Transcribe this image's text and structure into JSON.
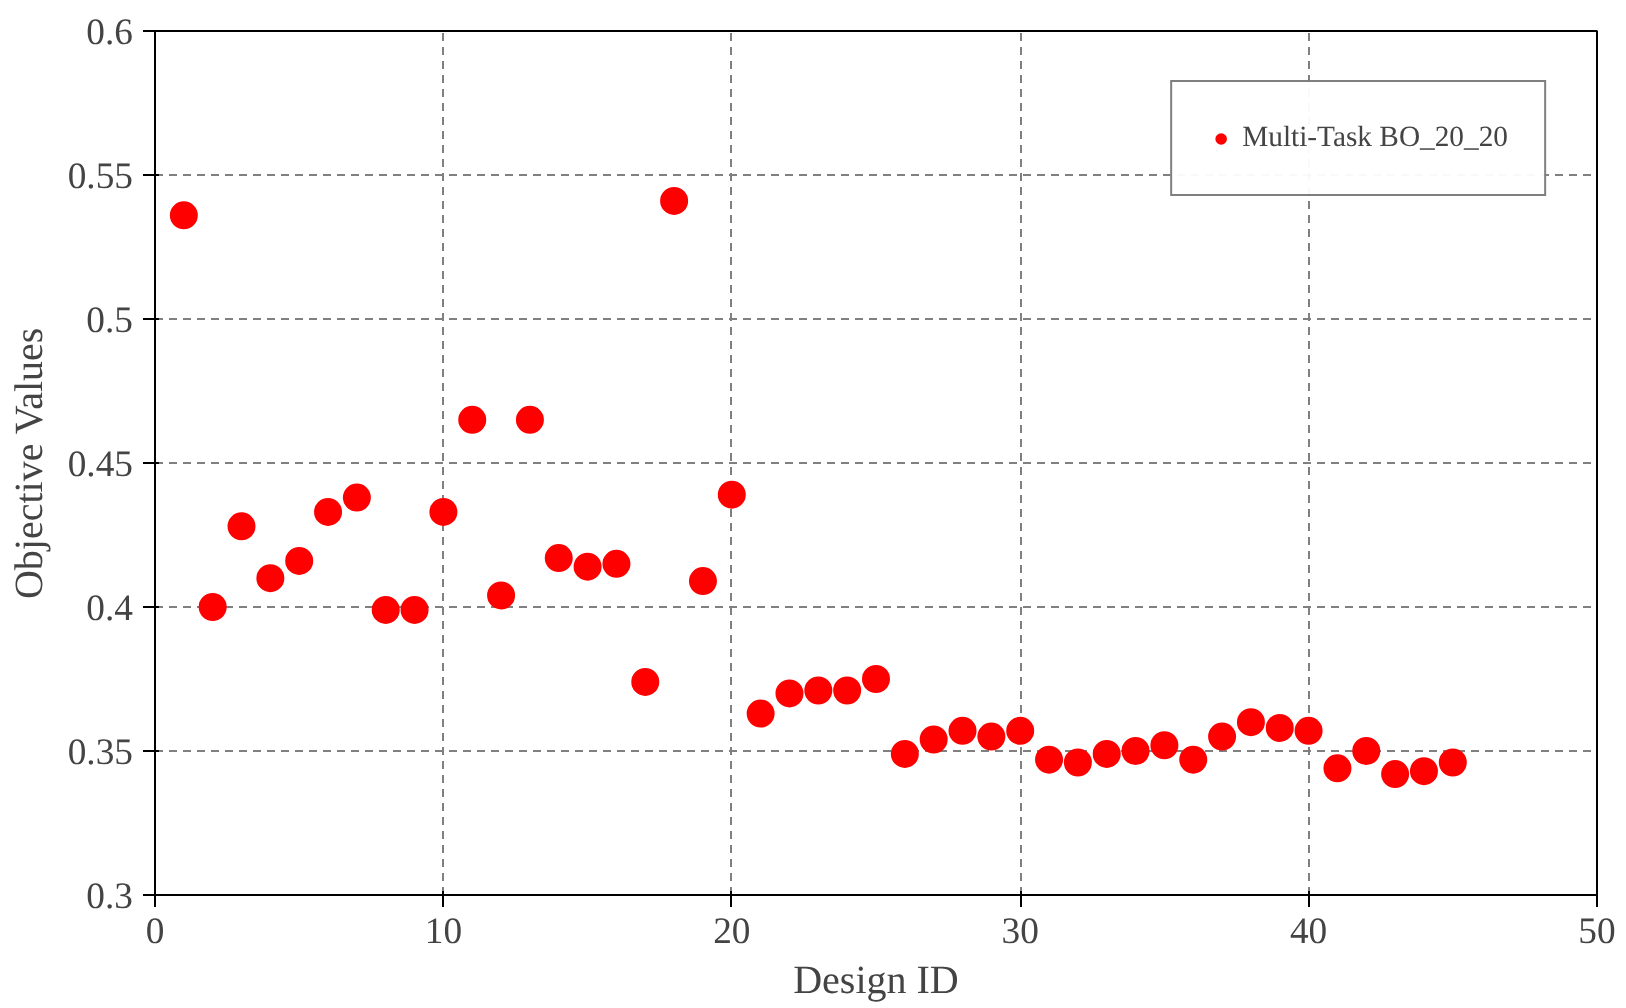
{
  "chart_data": {
    "type": "scatter",
    "xlabel": "Design ID",
    "ylabel": "Objective Values",
    "x": [
      1,
      2,
      3,
      4,
      5,
      6,
      7,
      8,
      9,
      10,
      11,
      12,
      13,
      14,
      15,
      16,
      17,
      18,
      19,
      20,
      21,
      22,
      23,
      24,
      25,
      26,
      27,
      28,
      29,
      30,
      31,
      32,
      33,
      34,
      35,
      36,
      37,
      38,
      39,
      40,
      41,
      42,
      43,
      44,
      45
    ],
    "series": [
      {
        "name": "Multi-Task BO_20_20",
        "color": "#ff0000",
        "values": [
          0.536,
          0.4,
          0.428,
          0.41,
          0.416,
          0.433,
          0.438,
          0.399,
          0.399,
          0.433,
          0.465,
          0.404,
          0.465,
          0.417,
          0.414,
          0.415,
          0.374,
          0.541,
          0.409,
          0.439,
          0.363,
          0.37,
          0.371,
          0.371,
          0.375,
          0.349,
          0.354,
          0.357,
          0.355,
          0.357,
          0.347,
          0.346,
          0.349,
          0.35,
          0.352,
          0.347,
          0.355,
          0.36,
          0.358,
          0.357,
          0.344,
          0.35,
          0.342,
          0.343,
          0.346
        ]
      }
    ],
    "xlim": [
      0,
      50
    ],
    "xticks": [
      0,
      10,
      20,
      30,
      40,
      50
    ],
    "ylim": [
      0.3,
      0.6
    ],
    "yticks": [
      {
        "value": 0.3,
        "label": "0.3"
      },
      {
        "value": 0.35,
        "label": "0.35"
      },
      {
        "value": 0.4,
        "label": "0.4"
      },
      {
        "value": 0.45,
        "label": "0.45"
      },
      {
        "value": 0.5,
        "label": "0.5"
      },
      {
        "value": 0.55,
        "label": "0.55"
      },
      {
        "value": 0.6,
        "label": "0.6"
      }
    ],
    "grid": true,
    "legend": "top right",
    "marker": "circle"
  }
}
